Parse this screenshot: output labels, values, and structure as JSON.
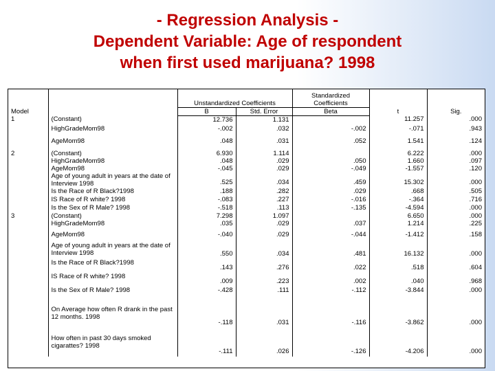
{
  "slide": {
    "title_lines": [
      "- Regression Analysis -",
      "Dependent Variable: Age of respondent",
      "when first used marijuana? 1998"
    ]
  },
  "table": {
    "header": {
      "model": "Model",
      "unstd_group": "Unstandardized Coefficients",
      "std_group": "Standardized Coefficients",
      "b": "B",
      "se": "Std. Error",
      "beta": "Beta",
      "t": "t",
      "sig": "Sig."
    },
    "rows": [
      {
        "model": "1",
        "var": "(Constant)",
        "b": "12.736",
        "se": "1.131",
        "beta": "",
        "t": "11.257",
        "sig": ".000"
      },
      {
        "model": "",
        "var": "HighGradeMom98",
        "b": "-.002",
        "se": ".032",
        "beta": "-.002",
        "t": "-.071",
        "sig": ".943"
      },
      {
        "model": "",
        "var": "AgeMom98",
        "b": ".048",
        "se": ".031",
        "beta": ".052",
        "t": "1.541",
        "sig": ".124"
      },
      {
        "model": "2",
        "var": "(Constant)",
        "b": "6.930",
        "se": "1.114",
        "beta": "",
        "t": "6.222",
        "sig": ".000"
      },
      {
        "model": "",
        "var": "HighGradeMom98",
        "b": ".048",
        "se": ".029",
        "beta": ".050",
        "t": "1.660",
        "sig": ".097"
      },
      {
        "model": "",
        "var": "AgeMom98",
        "b": "-.045",
        "se": ".029",
        "beta": "-.049",
        "t": "-1.557",
        "sig": ".120"
      },
      {
        "model": "",
        "var": "Age of young adult in years at the date of Interview 1998",
        "b": ".525",
        "se": ".034",
        "beta": ".459",
        "t": "15.302",
        "sig": ".000"
      },
      {
        "model": "",
        "var": "Is the Race of R Black?1998",
        "b": ".188",
        "se": ".282",
        "beta": ".029",
        "t": ".668",
        "sig": ".505"
      },
      {
        "model": "",
        "var": "IS Race of R white? 1998",
        "b": "-.083",
        "se": ".227",
        "beta": "-.016",
        "t": "-.364",
        "sig": ".716"
      },
      {
        "model": "",
        "var": "Is the Sex of R Male? 1998",
        "b": "-.518",
        "se": ".113",
        "beta": "-.135",
        "t": "-4.594",
        "sig": ".000"
      },
      {
        "model": "3",
        "var": "(Constant)",
        "b": "7.298",
        "se": "1.097",
        "beta": "",
        "t": "6.650",
        "sig": ".000"
      },
      {
        "model": "",
        "var": "HighGradeMom98",
        "b": ".035",
        "se": ".029",
        "beta": ".037",
        "t": "1.214",
        "sig": ".225"
      },
      {
        "model": "",
        "var": "AgeMom98",
        "b": "-.040",
        "se": ".029",
        "beta": "-.044",
        "t": "-1.412",
        "sig": ".158"
      },
      {
        "model": "",
        "var": "Age of young adult in years at the date of Interview 1998",
        "b": ".550",
        "se": ".034",
        "beta": ".481",
        "t": "16.132",
        "sig": ".000"
      },
      {
        "model": "",
        "var": "Is the Race of R Black?1998",
        "b": ".143",
        "se": ".276",
        "beta": ".022",
        "t": ".518",
        "sig": ".604"
      },
      {
        "model": "",
        "var": "IS Race of R white? 1998",
        "b": ".009",
        "se": ".223",
        "beta": ".002",
        "t": ".040",
        "sig": ".968"
      },
      {
        "model": "",
        "var": "Is the Sex of R Male? 1998",
        "b": "-.428",
        "se": ".111",
        "beta": "-.112",
        "t": "-3.844",
        "sig": ".000"
      },
      {
        "model": "",
        "var": "On Average how often R drank in the past 12 months. 1998",
        "b": "-.118",
        "se": ".031",
        "beta": "-.116",
        "t": "-3.862",
        "sig": ".000"
      },
      {
        "model": "",
        "var": "How often in past 30 days smoked cigarattes? 1998",
        "b": "-.111",
        "se": ".026",
        "beta": "-.126",
        "t": "-4.206",
        "sig": ".000"
      }
    ]
  }
}
